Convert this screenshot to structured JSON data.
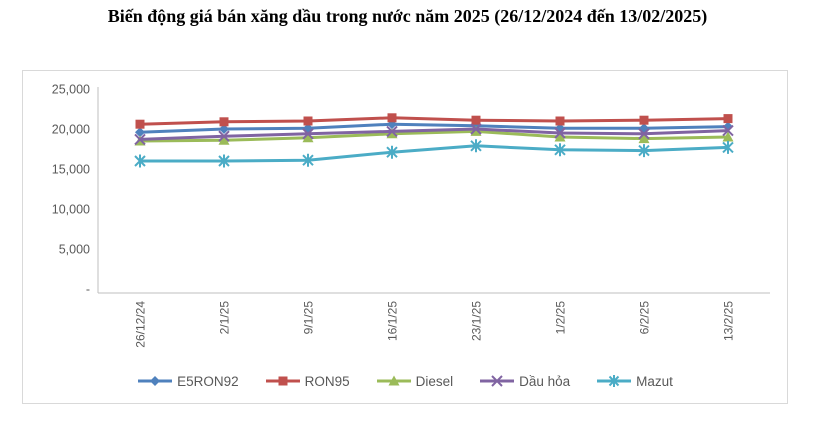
{
  "page": {
    "title": "Biến động giá bán xăng dầu trong nước năm 2025 (26/12/2024 đến 13/02/2025)"
  },
  "chart_data": {
    "type": "line",
    "title": "Biến động giá bán xăng dầu trong nước năm 2025 (26/12/2024 đến 13/02/2025)",
    "xlabel": "",
    "ylabel": "",
    "ylim": [
      0,
      25000
    ],
    "y_step": 5000,
    "grid": false,
    "legend_position": "bottom",
    "y_ticks": [
      "25,000",
      "20,000",
      "15,000",
      "10,000",
      "5,000",
      "-"
    ],
    "categories": [
      "26/12/24",
      "2/1/25",
      "9/1/25",
      "16/1/25",
      "23/1/25",
      "1/2/25",
      "6/2/25",
      "13/2/25"
    ],
    "series": [
      {
        "name": "E5RON92",
        "color": "#4F81BD",
        "marker": "diamond",
        "values": [
          19600,
          20000,
          20100,
          20600,
          20400,
          20100,
          20100,
          20300
        ]
      },
      {
        "name": "RON95",
        "color": "#C0504D",
        "marker": "square",
        "values": [
          20600,
          20900,
          21000,
          21400,
          21100,
          21000,
          21100,
          21300
        ]
      },
      {
        "name": "Diesel",
        "color": "#9BBB59",
        "marker": "triangle",
        "values": [
          18500,
          18600,
          18900,
          19400,
          19700,
          19000,
          18800,
          19000
        ]
      },
      {
        "name": "Dầu hỏa",
        "color": "#8064A2",
        "marker": "x",
        "values": [
          18700,
          19100,
          19400,
          19700,
          20000,
          19500,
          19400,
          19800
        ]
      },
      {
        "name": "Mazut",
        "color": "#4BACC6",
        "marker": "asterisk",
        "values": [
          16000,
          16000,
          16100,
          17100,
          17900,
          17400,
          17300,
          17700
        ]
      }
    ],
    "axis_color": "#bfbfbf",
    "tick_label_color": "#595959"
  }
}
